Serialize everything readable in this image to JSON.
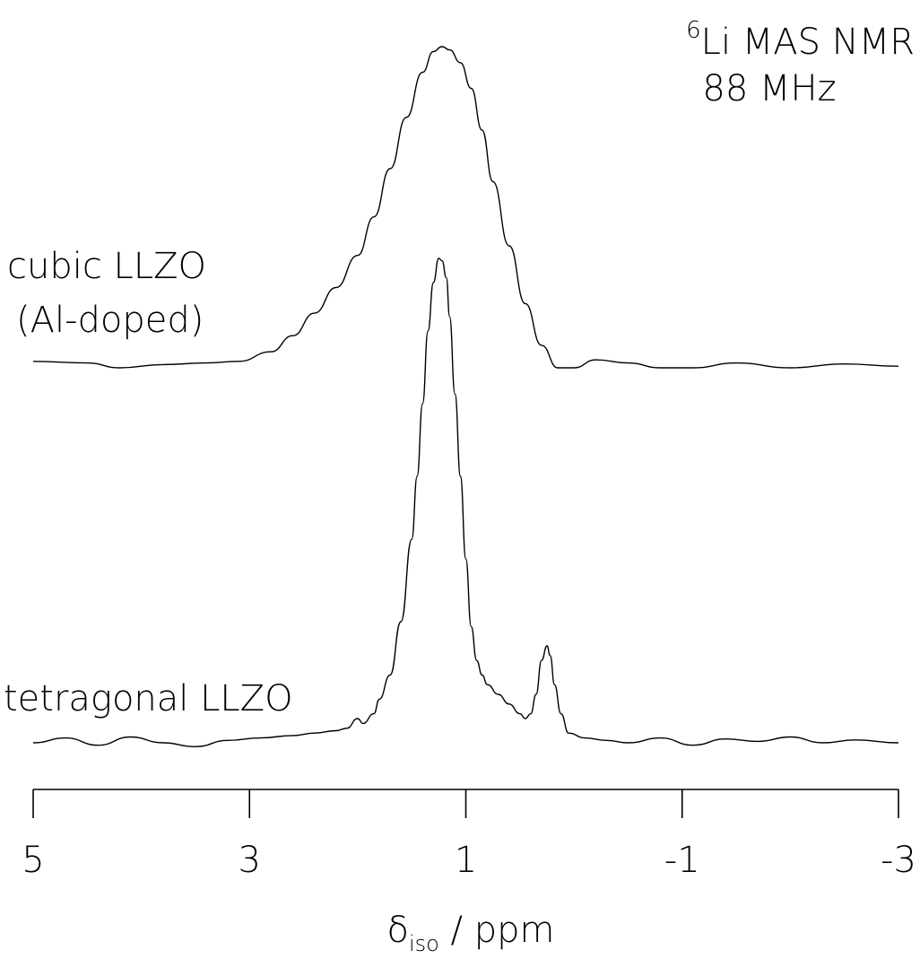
{
  "chart_data": {
    "type": "line",
    "annotation": {
      "nucleus_sup": "6",
      "nucleus_rest": "Li MAS NMR",
      "frequency": "88 MHz"
    },
    "xlabel": {
      "symbol": "δ",
      "subscript": "iso",
      "unit": " / ppm"
    },
    "xlim": [
      5,
      -3
    ],
    "xticks": [
      5,
      3,
      1,
      -1,
      -3
    ],
    "xtick_labels": [
      "5",
      "3",
      "1",
      "-1",
      "-3"
    ],
    "xaxis_reversed": true,
    "y_ticks_shown": false,
    "grid": false,
    "series": [
      {
        "name": "cubic LLZO",
        "name_line2": "(Al-doped)",
        "intensity_range": [
          0,
          1
        ],
        "x": [
          5.0,
          4.5,
          4.2,
          3.8,
          3.4,
          3.1,
          2.8,
          2.6,
          2.4,
          2.2,
          2.0,
          1.85,
          1.7,
          1.55,
          1.4,
          1.3,
          1.22,
          1.15,
          1.05,
          0.95,
          0.85,
          0.75,
          0.6,
          0.45,
          0.3,
          0.15,
          0.0,
          -0.2,
          -0.5,
          -0.8,
          -1.1,
          -1.5,
          -2.0,
          -2.5,
          -3.0
        ],
        "y": [
          0.02,
          0.015,
          0.0,
          0.01,
          0.015,
          0.02,
          0.05,
          0.1,
          0.17,
          0.25,
          0.35,
          0.47,
          0.62,
          0.78,
          0.92,
          0.985,
          1.0,
          0.99,
          0.95,
          0.87,
          0.74,
          0.58,
          0.38,
          0.2,
          0.07,
          0.0,
          0.0,
          0.025,
          0.015,
          0.0,
          0.0,
          0.015,
          0.0,
          0.012,
          0.005
        ]
      },
      {
        "name": "tetragonal LLZO",
        "intensity_range": [
          0,
          1
        ],
        "x": [
          5.0,
          4.7,
          4.4,
          4.1,
          3.8,
          3.5,
          3.2,
          2.9,
          2.6,
          2.4,
          2.2,
          2.1,
          2.0,
          1.95,
          1.85,
          1.8,
          1.7,
          1.6,
          1.5,
          1.45,
          1.4,
          1.35,
          1.3,
          1.25,
          1.22,
          1.18,
          1.15,
          1.1,
          1.05,
          1.0,
          0.95,
          0.9,
          0.85,
          0.8,
          0.7,
          0.6,
          0.5,
          0.45,
          0.4,
          0.35,
          0.3,
          0.25,
          0.22,
          0.18,
          0.12,
          0.05,
          -0.1,
          -0.3,
          -0.5,
          -0.8,
          -1.1,
          -1.4,
          -1.7,
          -2.0,
          -2.3,
          -2.6,
          -3.0
        ],
        "y": [
          0.0,
          0.01,
          -0.005,
          0.012,
          0.0,
          -0.008,
          0.005,
          0.01,
          0.015,
          0.02,
          0.025,
          0.03,
          0.05,
          0.04,
          0.06,
          0.09,
          0.14,
          0.25,
          0.42,
          0.55,
          0.7,
          0.85,
          0.95,
          1.0,
          0.995,
          0.96,
          0.88,
          0.72,
          0.55,
          0.38,
          0.24,
          0.17,
          0.14,
          0.12,
          0.1,
          0.08,
          0.06,
          0.05,
          0.06,
          0.1,
          0.17,
          0.2,
          0.18,
          0.12,
          0.06,
          0.02,
          0.01,
          0.005,
          0.0,
          0.01,
          -0.005,
          0.008,
          0.003,
          0.012,
          0.0,
          0.006,
          0.0
        ]
      }
    ]
  }
}
